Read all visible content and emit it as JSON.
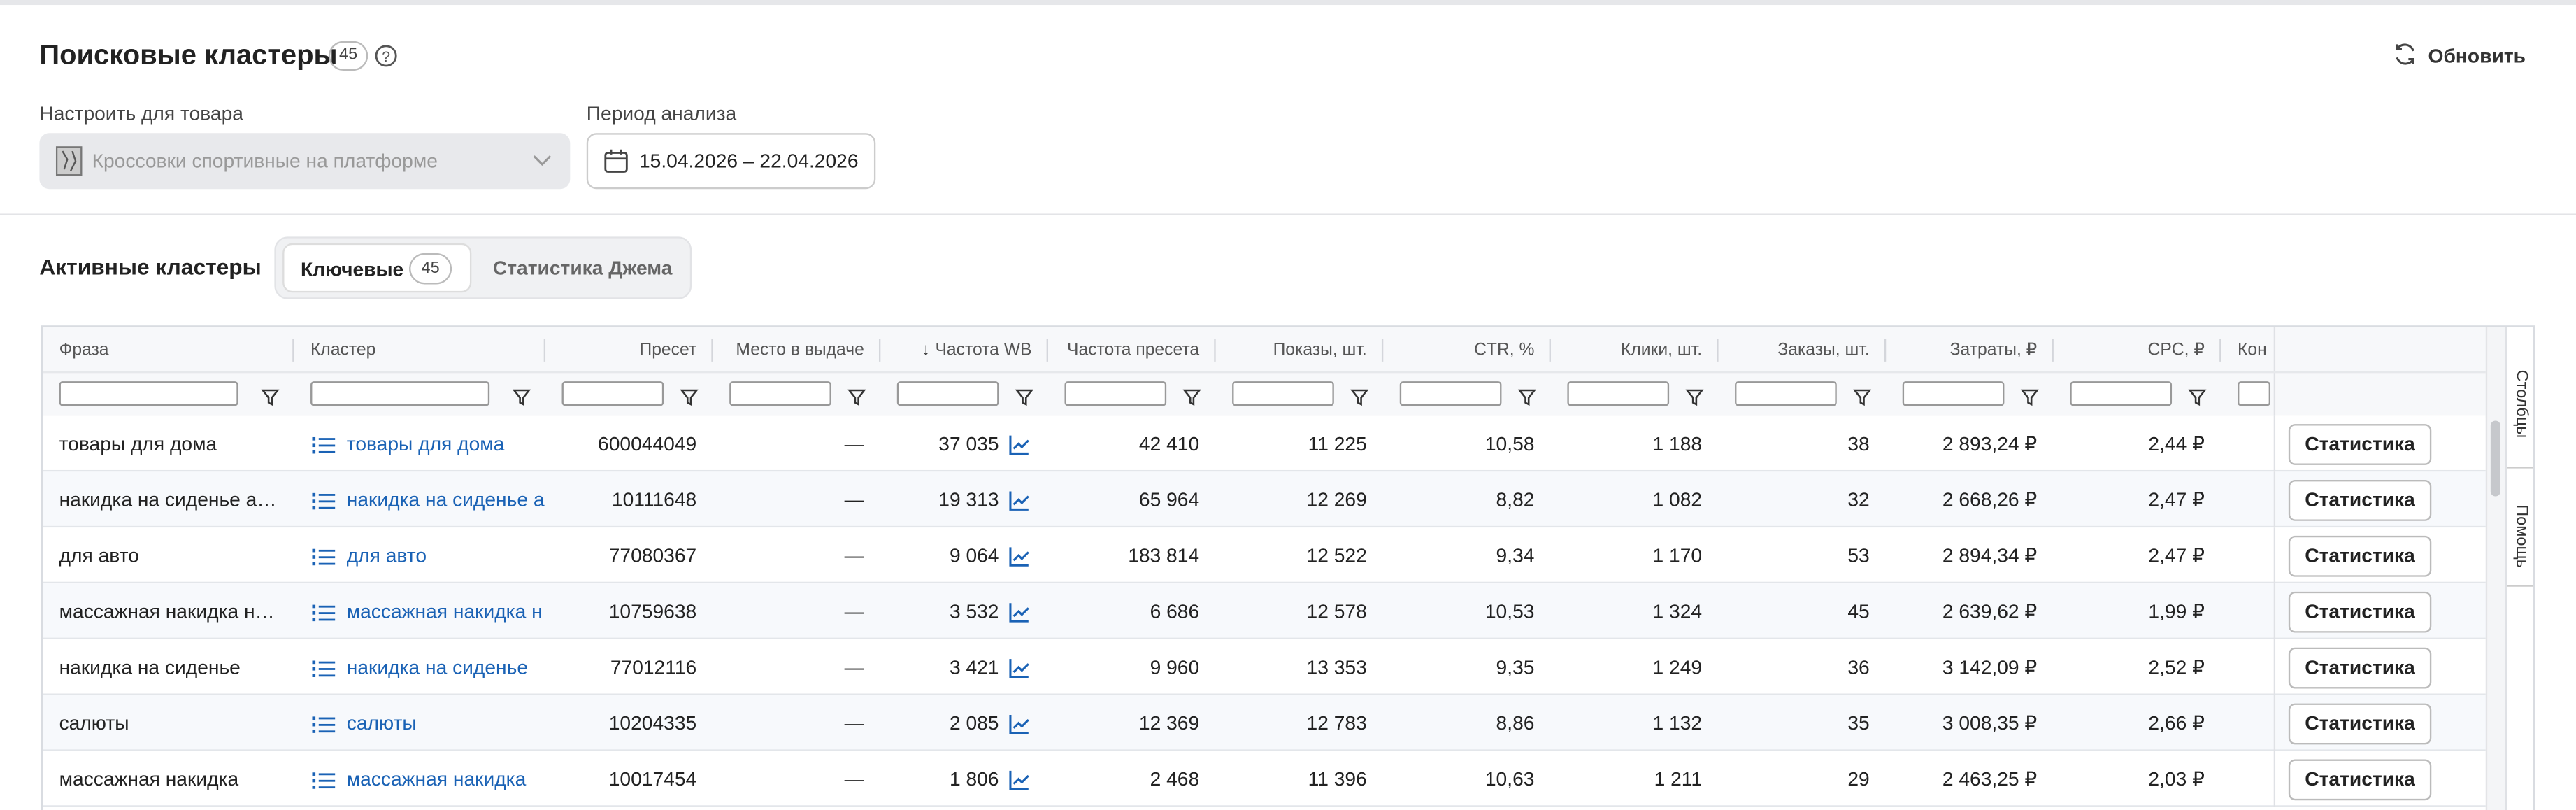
{
  "header": {
    "title": "Поисковые кластеры",
    "count": "45",
    "refresh": "Обновить"
  },
  "filters": {
    "product_label": "Настроить для товара",
    "product_value": "Кроссовки спортивные на платформе",
    "period_label": "Период анализа",
    "period_value": "15.04.2026 – 22.04.2026"
  },
  "section": {
    "title": "Активные кластеры",
    "tabs": [
      {
        "label": "Ключевые",
        "count": "45"
      },
      {
        "label": "Статистика Джема"
      }
    ]
  },
  "table": {
    "columns": [
      "Фраза",
      "Кластер",
      "Пресет",
      "Место в выдаче",
      "Частота WB",
      "Частота пресета",
      "Показы, шт.",
      "CTR, %",
      "Клики, шт.",
      "Заказы, шт.",
      "Затраты, ₽",
      "CPC, ₽",
      "Кон"
    ],
    "rows": [
      [
        "товары для дома",
        "товары для дома",
        "600044049",
        "—",
        "37 035",
        "42 410",
        "11 225",
        "10,58",
        "1 188",
        "38",
        "2 893,24 ₽",
        "2,44 ₽"
      ],
      [
        "накидка на сиденье а…",
        "накидка на сиденье а",
        "10111648",
        "—",
        "19 313",
        "65 964",
        "12 269",
        "8,82",
        "1 082",
        "32",
        "2 668,26 ₽",
        "2,47 ₽"
      ],
      [
        "для авто",
        "для авто",
        "77080367",
        "—",
        "9 064",
        "183 814",
        "12 522",
        "9,34",
        "1 170",
        "53",
        "2 894,34 ₽",
        "2,47 ₽"
      ],
      [
        "массажная накидка н…",
        "массажная накидка н",
        "10759638",
        "—",
        "3 532",
        "6 686",
        "12 578",
        "10,53",
        "1 324",
        "45",
        "2 639,62 ₽",
        "1,99 ₽"
      ],
      [
        "накидка на сиденье",
        "накидка на сиденье",
        "77012116",
        "—",
        "3 421",
        "9 960",
        "13 353",
        "9,35",
        "1 249",
        "36",
        "3 142,09 ₽",
        "2,52 ₽"
      ],
      [
        "салюты",
        "салюты",
        "10204335",
        "—",
        "2 085",
        "12 369",
        "12 783",
        "8,86",
        "1 132",
        "35",
        "3 008,35 ₽",
        "2,66 ₽"
      ],
      [
        "массажная накидка",
        "массажная накидка",
        "10017454",
        "—",
        "1 806",
        "2 468",
        "11 396",
        "10,63",
        "1 211",
        "29",
        "2 463,25 ₽",
        "2,03 ₽"
      ]
    ],
    "action": "Статистика"
  },
  "side_tabs": [
    "Столбцы",
    "Помощь"
  ]
}
